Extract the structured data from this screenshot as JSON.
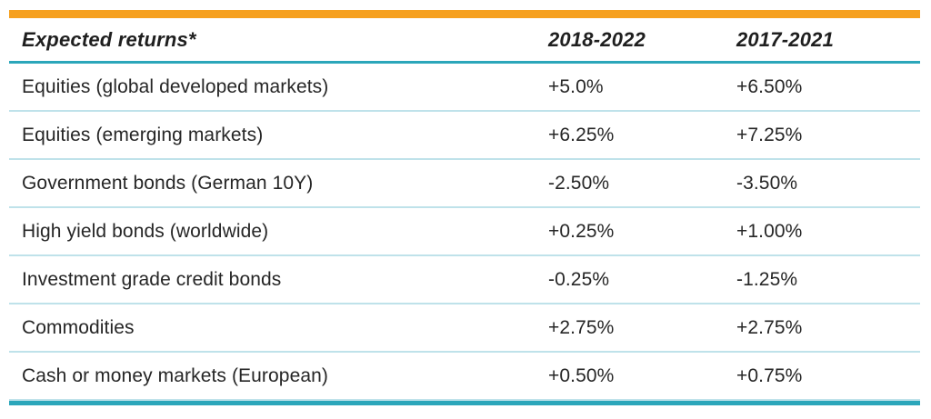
{
  "accent_colors": {
    "orange_bar": "#f6a01e",
    "teal_rule": "#2ba6ba",
    "row_divider": "#bfe2ea",
    "text": "#262626"
  },
  "table": {
    "header": {
      "title": "Expected returns*",
      "period1": "2018-2022",
      "period2": "2017-2021"
    },
    "rows": [
      {
        "label": "Equities (global developed markets)",
        "v1": "+5.0%",
        "v2": "+6.50%"
      },
      {
        "label": "Equities (emerging markets)",
        "v1": "+6.25%",
        "v2": "+7.25%"
      },
      {
        "label": "Government bonds (German 10Y)",
        "v1": "-2.50%",
        "v2": "-3.50%"
      },
      {
        "label": "High yield bonds (worldwide)",
        "v1": "+0.25%",
        "v2": "+1.00%"
      },
      {
        "label": "Investment grade credit bonds",
        "v1": "-0.25%",
        "v2": "-1.25%"
      },
      {
        "label": "Commodities",
        "v1": "+2.75%",
        "v2": "+2.75%"
      },
      {
        "label": "Cash or money markets (European)",
        "v1": "+0.50%",
        "v2": "+0.75%"
      }
    ]
  },
  "chart_data": {
    "type": "table",
    "title": "Expected returns*",
    "columns": [
      "Expected returns*",
      "2018-2022",
      "2017-2021"
    ],
    "categories": [
      "Equities (global developed markets)",
      "Equities (emerging markets)",
      "Government bonds (German 10Y)",
      "High yield bonds (worldwide)",
      "Investment grade credit bonds",
      "Commodities",
      "Cash or money markets (European)"
    ],
    "series": [
      {
        "name": "2018-2022",
        "values": [
          5.0,
          6.25,
          -2.5,
          0.25,
          -0.25,
          2.75,
          0.5
        ],
        "unit": "%"
      },
      {
        "name": "2017-2021",
        "values": [
          6.5,
          7.25,
          -3.5,
          1.0,
          -1.25,
          2.75,
          0.75
        ],
        "unit": "%"
      }
    ]
  }
}
